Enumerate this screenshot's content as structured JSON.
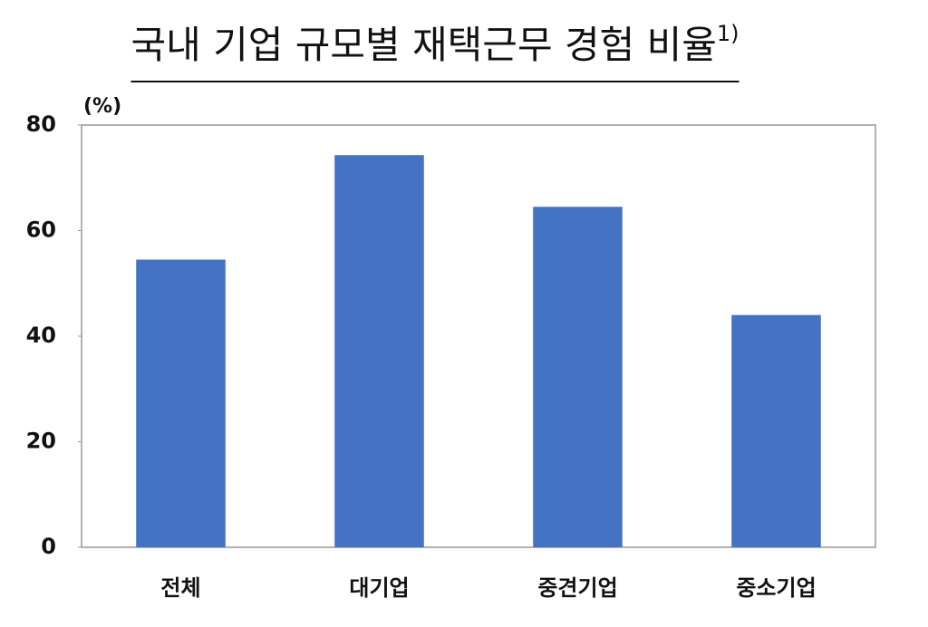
{
  "chart_data": {
    "type": "bar",
    "title": "국내 기업 규모별 재택근무 경험 비율",
    "title_note": "1)",
    "y_label": "(%)",
    "categories": [
      "전체",
      "대기업",
      "중견기업",
      "중소기업"
    ],
    "values": [
      54.5,
      74.3,
      64.5,
      44
    ],
    "color": "#4472c4",
    "ylim": [
      0,
      80
    ],
    "yticks": [
      0,
      20,
      40,
      60,
      80
    ],
    "grid": false
  }
}
